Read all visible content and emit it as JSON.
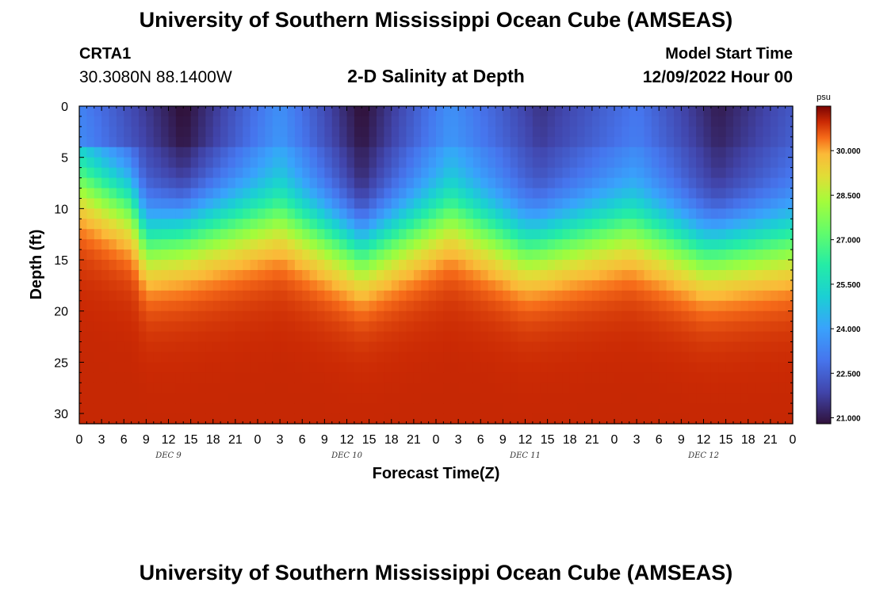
{
  "header": {
    "title": "University of Southern Mississippi Ocean Cube (AMSEAS)",
    "station": "CRTA1",
    "coords": "30.3080N  88.1400W",
    "subtitle": "2-D Salinity at Depth",
    "model_start_label": "Model Start Time",
    "model_start_value": "12/09/2022 Hour 00"
  },
  "footer": {
    "title": "University of Southern Mississippi Ocean Cube (AMSEAS)"
  },
  "chart_data": {
    "type": "heatmap",
    "title": "2-D Salinity at Depth",
    "xlabel": "Forecast Time(Z)",
    "ylabel": "Depth (ft)",
    "x_hours_range": [
      0,
      96
    ],
    "ylim": [
      0,
      31
    ],
    "x_tick_labels": [
      "0",
      "3",
      "6",
      "9",
      "12",
      "15",
      "18",
      "21",
      "0",
      "3",
      "6",
      "9",
      "12",
      "15",
      "18",
      "21",
      "0",
      "3",
      "6",
      "9",
      "12",
      "15",
      "18",
      "21",
      "0",
      "3",
      "6",
      "9",
      "12",
      "15",
      "18",
      "21",
      "0"
    ],
    "y_ticks": [
      0,
      5,
      10,
      15,
      20,
      25,
      30
    ],
    "day_labels": [
      {
        "label": "DEC 9",
        "hour": 12
      },
      {
        "label": "DEC 10",
        "hour": 36
      },
      {
        "label": "DEC 11",
        "hour": 60
      },
      {
        "label": "DEC 12",
        "hour": 84
      }
    ],
    "colorbar": {
      "unit": "psu",
      "range": [
        20.8,
        31.5
      ],
      "ticks": [
        "30.000",
        "28.500",
        "27.000",
        "25.500",
        "24.000",
        "22.500",
        "21.000"
      ]
    },
    "surface_minima": [
      {
        "hour": 14,
        "value": 20.9
      },
      {
        "hour": 38,
        "value": 20.9
      },
      {
        "hour": 62,
        "value": 21.7
      },
      {
        "hour": 86,
        "value": 21.2
      }
    ],
    "surface_maxima": [
      {
        "hour": 0,
        "value": 23.5
      },
      {
        "hour": 27,
        "value": 23.8
      },
      {
        "hour": 50,
        "value": 23.8
      },
      {
        "hour": 75,
        "value": 23.2
      },
      {
        "hour": 96,
        "value": 22.5
      }
    ],
    "halocline_depth_ft": [
      {
        "hour": 0,
        "depth": 7
      },
      {
        "hour": 7,
        "depth": 9.5
      },
      {
        "hour": 9,
        "depth": 13
      },
      {
        "hour": 16,
        "depth": 12
      },
      {
        "hour": 27,
        "depth": 10.5
      },
      {
        "hour": 38,
        "depth": 14
      },
      {
        "hour": 50,
        "depth": 10.5
      },
      {
        "hour": 60,
        "depth": 13.5
      },
      {
        "hour": 74,
        "depth": 11.5
      },
      {
        "hour": 84,
        "depth": 14
      },
      {
        "hour": 96,
        "depth": 13
      }
    ],
    "deep_salinity_psu": 31.0
  }
}
